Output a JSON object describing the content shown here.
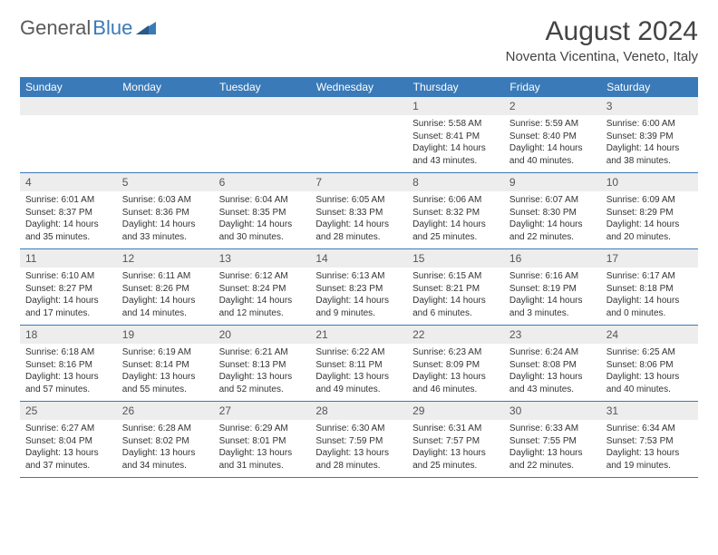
{
  "logo": {
    "text1": "General",
    "text2": "Blue"
  },
  "title": "August 2024",
  "location": "Noventa Vicentina, Veneto, Italy",
  "colors": {
    "header_bg": "#3a7ab8",
    "header_fg": "#ffffff",
    "daynum_bg": "#ededed",
    "border": "#3a7ab8",
    "logo_gray": "#5a5a5a",
    "logo_blue": "#3a7ab8"
  },
  "day_labels": [
    "Sunday",
    "Monday",
    "Tuesday",
    "Wednesday",
    "Thursday",
    "Friday",
    "Saturday"
  ],
  "weeks": [
    [
      {
        "empty": true
      },
      {
        "empty": true
      },
      {
        "empty": true
      },
      {
        "empty": true
      },
      {
        "n": "1",
        "sr": "5:58 AM",
        "ss": "8:41 PM",
        "dl": "14 hours and 43 minutes."
      },
      {
        "n": "2",
        "sr": "5:59 AM",
        "ss": "8:40 PM",
        "dl": "14 hours and 40 minutes."
      },
      {
        "n": "3",
        "sr": "6:00 AM",
        "ss": "8:39 PM",
        "dl": "14 hours and 38 minutes."
      }
    ],
    [
      {
        "n": "4",
        "sr": "6:01 AM",
        "ss": "8:37 PM",
        "dl": "14 hours and 35 minutes."
      },
      {
        "n": "5",
        "sr": "6:03 AM",
        "ss": "8:36 PM",
        "dl": "14 hours and 33 minutes."
      },
      {
        "n": "6",
        "sr": "6:04 AM",
        "ss": "8:35 PM",
        "dl": "14 hours and 30 minutes."
      },
      {
        "n": "7",
        "sr": "6:05 AM",
        "ss": "8:33 PM",
        "dl": "14 hours and 28 minutes."
      },
      {
        "n": "8",
        "sr": "6:06 AM",
        "ss": "8:32 PM",
        "dl": "14 hours and 25 minutes."
      },
      {
        "n": "9",
        "sr": "6:07 AM",
        "ss": "8:30 PM",
        "dl": "14 hours and 22 minutes."
      },
      {
        "n": "10",
        "sr": "6:09 AM",
        "ss": "8:29 PM",
        "dl": "14 hours and 20 minutes."
      }
    ],
    [
      {
        "n": "11",
        "sr": "6:10 AM",
        "ss": "8:27 PM",
        "dl": "14 hours and 17 minutes."
      },
      {
        "n": "12",
        "sr": "6:11 AM",
        "ss": "8:26 PM",
        "dl": "14 hours and 14 minutes."
      },
      {
        "n": "13",
        "sr": "6:12 AM",
        "ss": "8:24 PM",
        "dl": "14 hours and 12 minutes."
      },
      {
        "n": "14",
        "sr": "6:13 AM",
        "ss": "8:23 PM",
        "dl": "14 hours and 9 minutes."
      },
      {
        "n": "15",
        "sr": "6:15 AM",
        "ss": "8:21 PM",
        "dl": "14 hours and 6 minutes."
      },
      {
        "n": "16",
        "sr": "6:16 AM",
        "ss": "8:19 PM",
        "dl": "14 hours and 3 minutes."
      },
      {
        "n": "17",
        "sr": "6:17 AM",
        "ss": "8:18 PM",
        "dl": "14 hours and 0 minutes."
      }
    ],
    [
      {
        "n": "18",
        "sr": "6:18 AM",
        "ss": "8:16 PM",
        "dl": "13 hours and 57 minutes."
      },
      {
        "n": "19",
        "sr": "6:19 AM",
        "ss": "8:14 PM",
        "dl": "13 hours and 55 minutes."
      },
      {
        "n": "20",
        "sr": "6:21 AM",
        "ss": "8:13 PM",
        "dl": "13 hours and 52 minutes."
      },
      {
        "n": "21",
        "sr": "6:22 AM",
        "ss": "8:11 PM",
        "dl": "13 hours and 49 minutes."
      },
      {
        "n": "22",
        "sr": "6:23 AM",
        "ss": "8:09 PM",
        "dl": "13 hours and 46 minutes."
      },
      {
        "n": "23",
        "sr": "6:24 AM",
        "ss": "8:08 PM",
        "dl": "13 hours and 43 minutes."
      },
      {
        "n": "24",
        "sr": "6:25 AM",
        "ss": "8:06 PM",
        "dl": "13 hours and 40 minutes."
      }
    ],
    [
      {
        "n": "25",
        "sr": "6:27 AM",
        "ss": "8:04 PM",
        "dl": "13 hours and 37 minutes."
      },
      {
        "n": "26",
        "sr": "6:28 AM",
        "ss": "8:02 PM",
        "dl": "13 hours and 34 minutes."
      },
      {
        "n": "27",
        "sr": "6:29 AM",
        "ss": "8:01 PM",
        "dl": "13 hours and 31 minutes."
      },
      {
        "n": "28",
        "sr": "6:30 AM",
        "ss": "7:59 PM",
        "dl": "13 hours and 28 minutes."
      },
      {
        "n": "29",
        "sr": "6:31 AM",
        "ss": "7:57 PM",
        "dl": "13 hours and 25 minutes."
      },
      {
        "n": "30",
        "sr": "6:33 AM",
        "ss": "7:55 PM",
        "dl": "13 hours and 22 minutes."
      },
      {
        "n": "31",
        "sr": "6:34 AM",
        "ss": "7:53 PM",
        "dl": "13 hours and 19 minutes."
      }
    ]
  ],
  "labels": {
    "sunrise": "Sunrise:",
    "sunset": "Sunset:",
    "daylight": "Daylight:"
  }
}
